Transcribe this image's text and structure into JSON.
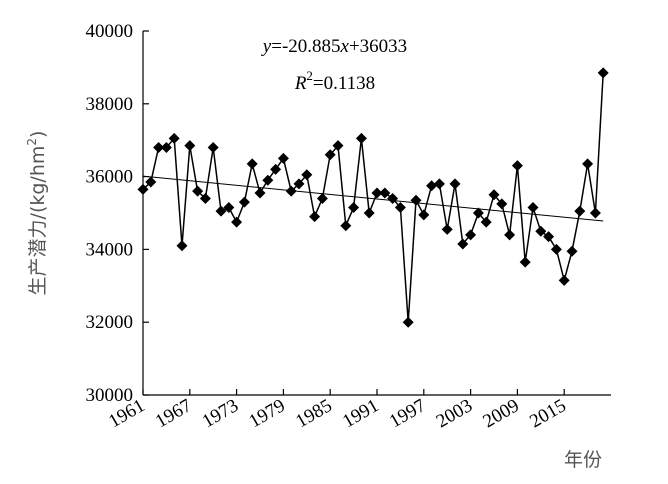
{
  "chart_data": {
    "type": "line",
    "xlabel": "年份",
    "ylabel": "生产潜力/(kg/hm²)",
    "ylabel_parts": {
      "main": "生产潜力/(kg/hm",
      "sup": "2",
      "close": ")"
    },
    "xlim": [
      1961,
      2021
    ],
    "ylim": [
      30000,
      40000
    ],
    "x_ticks": [
      1961,
      1967,
      1973,
      1979,
      1985,
      1991,
      1997,
      2003,
      2009,
      2015
    ],
    "x_tick_labels": [
      "1961",
      "1967",
      "1973",
      "1979",
      "1985",
      "1991",
      "1997",
      "2003",
      "2009",
      "2015"
    ],
    "y_ticks": [
      30000,
      32000,
      34000,
      36000,
      38000,
      40000
    ],
    "y_tick_labels": [
      "30000",
      "32000",
      "34000",
      "36000",
      "38000",
      "40000"
    ],
    "grid": false,
    "legend": "none",
    "marker": "diamond",
    "series": [
      {
        "x": [
          1961,
          1962,
          1963,
          1964,
          1965,
          1966,
          1967,
          1968,
          1969,
          1970,
          1971,
          1972,
          1973,
          1974,
          1975,
          1976,
          1977,
          1978,
          1979,
          1980,
          1981,
          1982,
          1983,
          1984,
          1985,
          1986,
          1987,
          1988,
          1989,
          1990,
          1991,
          1992,
          1993,
          1994,
          1995,
          1996,
          1997,
          1998,
          1999,
          2000,
          2001,
          2002,
          2003,
          2004,
          2005,
          2006,
          2007,
          2008,
          2009,
          2010,
          2011,
          2012,
          2013,
          2014,
          2015,
          2016,
          2017,
          2018,
          2019,
          2020
        ],
        "y": [
          35650,
          35850,
          36800,
          36800,
          37050,
          34100,
          36850,
          35600,
          35400,
          36800,
          35050,
          35150,
          34750,
          35300,
          36350,
          35550,
          35900,
          36200,
          36500,
          35600,
          35800,
          36050,
          34900,
          35400,
          36600,
          36850,
          34650,
          35150,
          37050,
          35000,
          35550,
          35550,
          35400,
          35150,
          32000,
          35350,
          34950,
          35750,
          35800,
          34550,
          35800,
          34150,
          34400,
          35000,
          34750,
          35500,
          35250,
          34400,
          36300,
          33650,
          35150,
          34500,
          34350,
          34000,
          33150,
          33950,
          35050,
          36350,
          35000,
          38850
        ]
      }
    ],
    "trendline": {
      "slope": -20.885,
      "intercept_at_1961": 36033,
      "x_range": [
        1961,
        2020
      ]
    },
    "annotations": {
      "equation": {
        "y": "y",
        "rest": "=-20.885",
        "x": "x",
        "tail": "+36033"
      },
      "r2": {
        "r": "R",
        "sup": "2",
        "tail": "=0.1138"
      }
    },
    "colors": {
      "marker": "#000000",
      "line": "#000000",
      "axis": "#000000",
      "axis_title": "#555555"
    }
  }
}
